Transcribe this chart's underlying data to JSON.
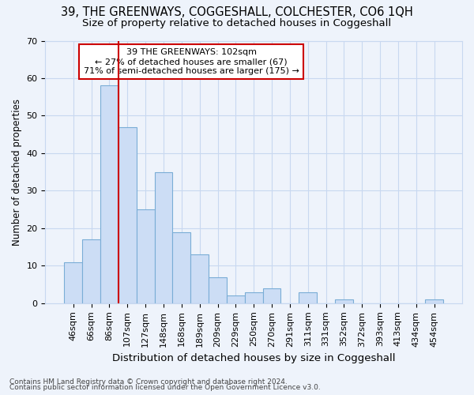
{
  "title": "39, THE GREENWAYS, COGGESHALL, COLCHESTER, CO6 1QH",
  "subtitle": "Size of property relative to detached houses in Coggeshall",
  "xlabel": "Distribution of detached houses by size in Coggeshall",
  "ylabel": "Number of detached properties",
  "bar_labels": [
    "46sqm",
    "66sqm",
    "86sqm",
    "107sqm",
    "127sqm",
    "148sqm",
    "168sqm",
    "189sqm",
    "209sqm",
    "229sqm",
    "250sqm",
    "270sqm",
    "291sqm",
    "311sqm",
    "331sqm",
    "352sqm",
    "372sqm",
    "393sqm",
    "413sqm",
    "434sqm",
    "454sqm"
  ],
  "bar_values": [
    11,
    17,
    58,
    47,
    25,
    35,
    19,
    13,
    7,
    2,
    3,
    4,
    0,
    3,
    0,
    1,
    0,
    0,
    0,
    0,
    1
  ],
  "bar_color": "#ccddf5",
  "bar_edge_color": "#7aadd6",
  "vline_color": "#cc0000",
  "annotation_title": "39 THE GREENWAYS: 102sqm",
  "annotation_line1": "← 27% of detached houses are smaller (67)",
  "annotation_line2": "71% of semi-detached houses are larger (175) →",
  "annotation_box_color": "#ffffff",
  "annotation_box_edge": "#cc0000",
  "ylim": [
    0,
    70
  ],
  "yticks": [
    0,
    10,
    20,
    30,
    40,
    50,
    60,
    70
  ],
  "footer1": "Contains HM Land Registry data © Crown copyright and database right 2024.",
  "footer2": "Contains public sector information licensed under the Open Government Licence v3.0.",
  "bg_color": "#eef3fb",
  "grid_color": "#c8d8f0",
  "title_fontsize": 10.5,
  "subtitle_fontsize": 9.5,
  "xlabel_fontsize": 9.5,
  "ylabel_fontsize": 8.5,
  "tick_fontsize": 8,
  "ann_fontsize": 8,
  "footer_fontsize": 6.5
}
